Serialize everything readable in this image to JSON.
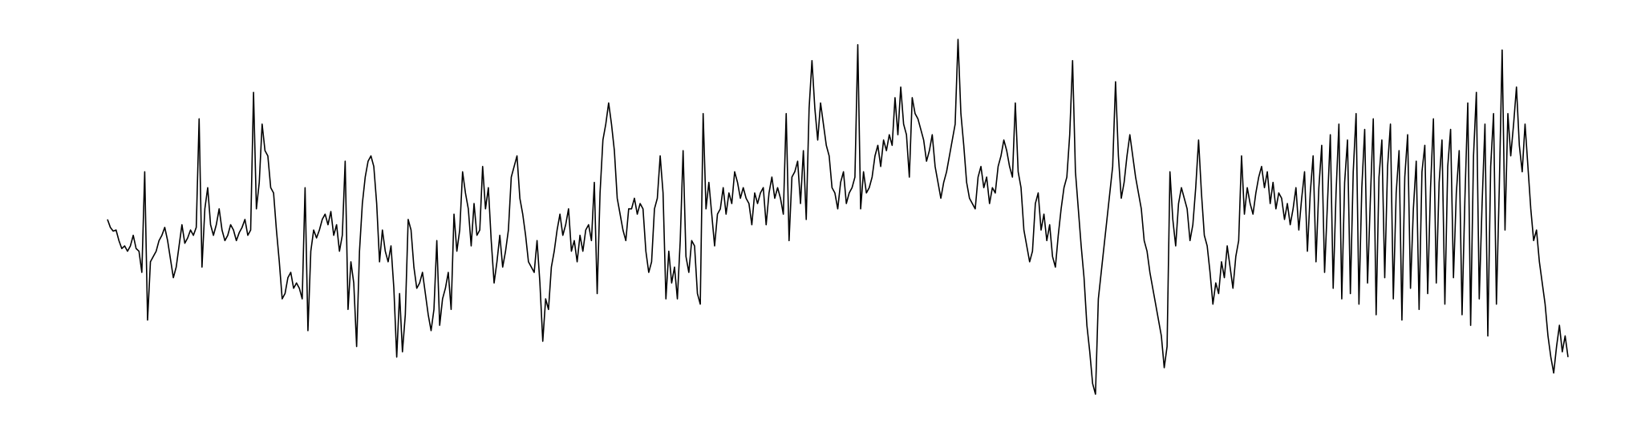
{
  "chart_data": {
    "type": "line",
    "title": "",
    "xlabel": "",
    "ylabel": "",
    "grid": false,
    "axes_visible": false,
    "legend": "none",
    "xlim": [
      0,
      800
    ],
    "ylim": [
      -3.3,
      3.6
    ],
    "series": [
      {
        "color": "#000000",
        "values": [
          0.0,
          -0.15,
          -0.22,
          -0.2,
          -0.4,
          -0.55,
          -0.5,
          -0.6,
          -0.5,
          -0.3,
          -0.55,
          -0.6,
          -1.0,
          0.9,
          -1.9,
          -0.8,
          -0.7,
          -0.6,
          -0.4,
          -0.3,
          -0.15,
          -0.4,
          -0.75,
          -1.1,
          -0.9,
          -0.5,
          -0.1,
          -0.45,
          -0.35,
          -0.2,
          -0.3,
          -0.15,
          1.9,
          -0.9,
          0.2,
          0.6,
          -0.1,
          -0.3,
          -0.1,
          0.2,
          -0.2,
          -0.4,
          -0.3,
          -0.1,
          -0.2,
          -0.4,
          -0.25,
          -0.15,
          0.0,
          -0.3,
          -0.2,
          2.4,
          0.2,
          0.7,
          1.8,
          1.3,
          1.2,
          0.6,
          0.5,
          -0.2,
          -0.8,
          -1.5,
          -1.4,
          -1.1,
          -1.0,
          -1.3,
          -1.2,
          -1.3,
          -1.5,
          0.6,
          -2.1,
          -0.6,
          -0.2,
          -0.35,
          -0.2,
          0.0,
          0.1,
          -0.1,
          0.15,
          -0.3,
          -0.1,
          -0.6,
          -0.3,
          1.1,
          -1.7,
          -0.8,
          -1.2,
          -2.4,
          -0.6,
          0.3,
          0.8,
          1.1,
          1.2,
          1.0,
          0.3,
          -0.8,
          -0.2,
          -0.6,
          -0.8,
          -0.5,
          -1.3,
          -2.6,
          -1.4,
          -2.5,
          -1.8,
          0.0,
          -0.2,
          -0.9,
          -1.3,
          -1.2,
          -1.0,
          -1.4,
          -1.8,
          -2.1,
          -1.7,
          -0.4,
          -2.0,
          -1.5,
          -1.3,
          -1.0,
          -1.7,
          0.1,
          -0.6,
          -0.2,
          0.9,
          0.5,
          0.2,
          -0.5,
          0.3,
          -0.3,
          -0.2,
          1.0,
          0.2,
          0.6,
          -0.4,
          -1.2,
          -0.8,
          -0.3,
          -0.9,
          -0.6,
          -0.2,
          0.8,
          1.0,
          1.2,
          0.4,
          0.1,
          -0.3,
          -0.8,
          -0.9,
          -1.0,
          -0.4,
          -1.2,
          -2.3,
          -1.5,
          -1.7,
          -0.9,
          -0.6,
          -0.2,
          0.1,
          -0.3,
          -0.1,
          0.2,
          -0.6,
          -0.4,
          -0.8,
          -0.3,
          -0.6,
          -0.2,
          -0.1,
          -0.4,
          0.7,
          -1.4,
          0.5,
          1.5,
          1.8,
          2.2,
          1.8,
          1.3,
          0.4,
          0.1,
          -0.2,
          -0.4,
          0.2,
          0.2,
          0.4,
          0.1,
          0.3,
          0.2,
          -0.6,
          -1.0,
          -0.8,
          0.2,
          0.4,
          1.2,
          0.5,
          -1.5,
          -0.6,
          -1.2,
          -0.9,
          -1.5,
          -0.4,
          1.3,
          -0.7,
          -1.0,
          -0.4,
          -0.5,
          -1.4,
          -1.6,
          2.0,
          0.2,
          0.7,
          0.1,
          -0.5,
          0.1,
          0.2,
          0.6,
          0.1,
          0.5,
          0.3,
          0.9,
          0.7,
          0.4,
          0.6,
          0.4,
          0.3,
          -0.1,
          0.5,
          0.3,
          0.5,
          0.6,
          -0.1,
          0.5,
          0.8,
          0.4,
          0.6,
          0.4,
          0.1,
          2.0,
          -0.4,
          0.8,
          0.9,
          1.1,
          0.3,
          1.3,
          0.0,
          2.1,
          3.0,
          2.1,
          1.5,
          2.2,
          1.8,
          1.4,
          1.2,
          0.6,
          0.5,
          0.2,
          0.7,
          0.9,
          0.3,
          0.5,
          0.6,
          0.8,
          3.3,
          0.2,
          0.9,
          0.5,
          0.6,
          0.8,
          1.2,
          1.4,
          1.0,
          1.5,
          1.3,
          1.6,
          1.4,
          2.3,
          1.6,
          2.5,
          1.8,
          1.6,
          0.8,
          2.3,
          2.0,
          1.9,
          1.7,
          1.5,
          1.1,
          1.3,
          1.6,
          1.0,
          0.7,
          0.4,
          0.7,
          0.9,
          1.2,
          1.5,
          1.8,
          3.4,
          2.0,
          1.4,
          0.7,
          0.4,
          0.3,
          0.2,
          0.8,
          1.0,
          0.6,
          0.8,
          0.3,
          0.6,
          0.5,
          1.0,
          1.2,
          1.5,
          1.3,
          1.0,
          0.8,
          2.2,
          0.9,
          0.6,
          -0.2,
          -0.5,
          -0.8,
          -0.6,
          0.3,
          0.5,
          -0.2,
          0.1,
          -0.4,
          -0.1,
          -0.7,
          -0.9,
          -0.3,
          0.2,
          0.6,
          0.8,
          1.6,
          3.0,
          0.9,
          0.2,
          -0.5,
          -1.1,
          -2.0,
          -2.5,
          -3.1,
          -3.3,
          -1.5,
          -1.0,
          -0.5,
          0.0,
          0.5,
          1.0,
          2.6,
          1.2,
          0.4,
          0.7,
          1.2,
          1.6,
          1.2,
          0.8,
          0.5,
          0.2,
          -0.4,
          -0.6,
          -1.0,
          -1.3,
          -1.6,
          -1.9,
          -2.2,
          -2.8,
          -2.4,
          0.9,
          0.0,
          -0.5,
          0.3,
          0.6,
          0.4,
          0.2,
          -0.4,
          -0.1,
          0.6,
          1.5,
          0.5,
          -0.3,
          -0.5,
          -1.0,
          -1.6,
          -1.2,
          -1.4,
          -0.8,
          -1.1,
          -0.5,
          -0.9,
          -1.3,
          -0.7,
          -0.4,
          1.2,
          0.1,
          0.6,
          0.3,
          0.1,
          0.5,
          0.8,
          1.0,
          0.6,
          0.9,
          0.3,
          0.7,
          0.2,
          0.5,
          0.4,
          0.0,
          0.3,
          -0.1,
          0.2,
          0.6,
          -0.2,
          0.4,
          0.9,
          -0.6,
          0.5,
          1.2,
          -0.8,
          0.6,
          1.4,
          -1.0,
          0.3,
          1.6,
          -1.3,
          0.5,
          1.8,
          -1.5,
          0.7,
          1.5,
          -1.4,
          0.9,
          2.0,
          -1.6,
          0.6,
          1.7,
          -1.2,
          0.4,
          1.9,
          -1.8,
          0.8,
          1.5,
          -1.1,
          1.0,
          1.8,
          -1.5,
          0.5,
          1.3,
          -1.9,
          0.8,
          1.6,
          -1.3,
          0.2,
          1.1,
          -1.7,
          0.9,
          1.4,
          -1.4,
          0.6,
          1.9,
          -1.2,
          0.7,
          1.5,
          -1.6,
          1.0,
          1.7,
          -1.1,
          0.5,
          1.3,
          -1.8,
          0.4,
          2.2,
          -2.0,
          1.2,
          2.4,
          -1.5,
          0.3,
          1.8,
          -2.2,
          1.0,
          2.0,
          -1.6,
          0.6,
          3.2,
          -0.2,
          2.0,
          1.2,
          1.8,
          2.5,
          1.4,
          0.9,
          1.8,
          1.0,
          0.2,
          -0.4,
          -0.2,
          -0.8,
          -1.2,
          -1.6,
          -2.2,
          -2.6,
          -2.9,
          -2.4,
          -2.0,
          -2.5,
          -2.2,
          -2.6
        ]
      }
    ]
  }
}
